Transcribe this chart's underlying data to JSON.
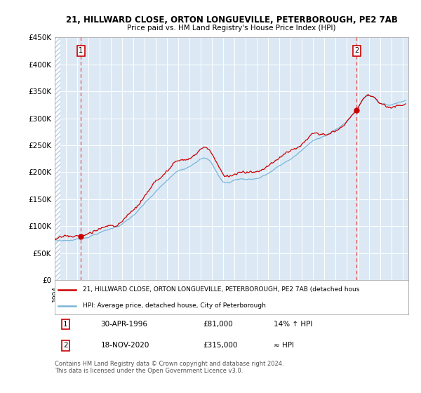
{
  "title1": "21, HILLWARD CLOSE, ORTON LONGUEVILLE, PETERBOROUGH, PE2 7AB",
  "title2": "Price paid vs. HM Land Registry's House Price Index (HPI)",
  "legend_line1": "21, HILLWARD CLOSE, ORTON LONGUEVILLE, PETERBOROUGH, PE2 7AB (detached hous",
  "legend_line2": "HPI: Average price, detached house, City of Peterborough",
  "annotation1_date": "30-APR-1996",
  "annotation1_price": "£81,000",
  "annotation1_pct": "14% ↑ HPI",
  "annotation2_date": "18-NOV-2020",
  "annotation2_price": "£315,000",
  "annotation2_pct": "≈ HPI",
  "footer": "Contains HM Land Registry data © Crown copyright and database right 2024.\nThis data is licensed under the Open Government Licence v3.0.",
  "ylim": [
    0,
    450000
  ],
  "yticks": [
    0,
    50000,
    100000,
    150000,
    200000,
    250000,
    300000,
    350000,
    400000,
    450000
  ],
  "ytick_labels": [
    "£0",
    "£50K",
    "£100K",
    "£150K",
    "£200K",
    "£250K",
    "£300K",
    "£350K",
    "£400K",
    "£450K"
  ],
  "bg_color": "#dce9f5",
  "red_color": "#cc0000",
  "blue_color": "#7ab6d9",
  "vline_color": "#e05050",
  "point1_x": 1996.33,
  "point1_y": 81000,
  "point2_x": 2020.88,
  "point2_y": 315000,
  "xmin": 1994.0,
  "xmax": 2025.5
}
